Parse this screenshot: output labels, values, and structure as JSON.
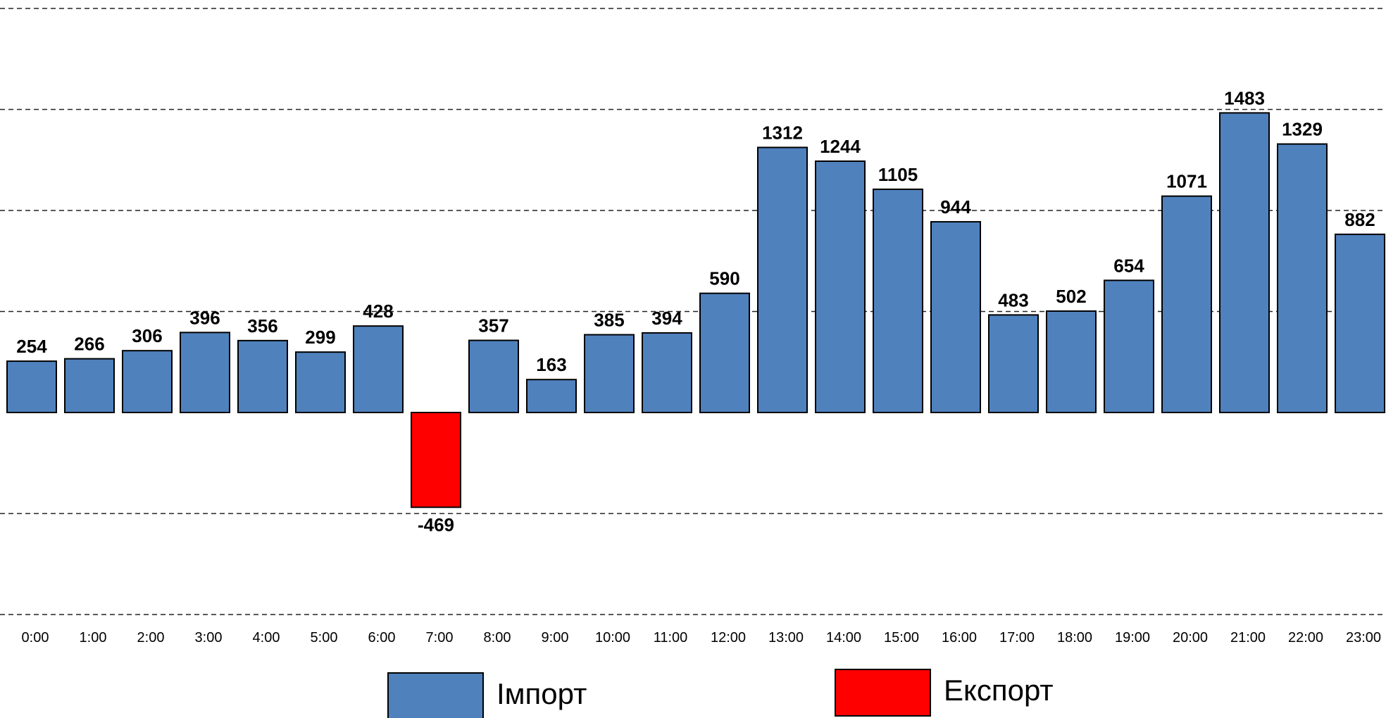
{
  "chart_data": {
    "type": "bar",
    "title": "",
    "xlabel": "",
    "ylabel": "",
    "ylim": [
      -1000,
      2000
    ],
    "grid": true,
    "gridlines": [
      -1000,
      -500,
      500,
      1000,
      1500,
      2000
    ],
    "legend_position": "bottom",
    "categories": [
      "0:00",
      "1:00",
      "2:00",
      "3:00",
      "4:00",
      "5:00",
      "6:00",
      "7:00",
      "8:00",
      "9:00",
      "10:00",
      "11:00",
      "12:00",
      "13:00",
      "14:00",
      "15:00",
      "16:00",
      "17:00",
      "18:00",
      "19:00",
      "20:00",
      "21:00",
      "22:00",
      "23:00"
    ],
    "values": [
      254,
      266,
      306,
      396,
      356,
      299,
      428,
      -469,
      357,
      163,
      385,
      394,
      590,
      1312,
      1244,
      1105,
      944,
      483,
      502,
      654,
      1071,
      1483,
      1329,
      882
    ],
    "series": [
      {
        "name": "Імпорт",
        "color": "#4F81BD"
      },
      {
        "name": "Експорт",
        "color": "#FF0000"
      }
    ]
  }
}
